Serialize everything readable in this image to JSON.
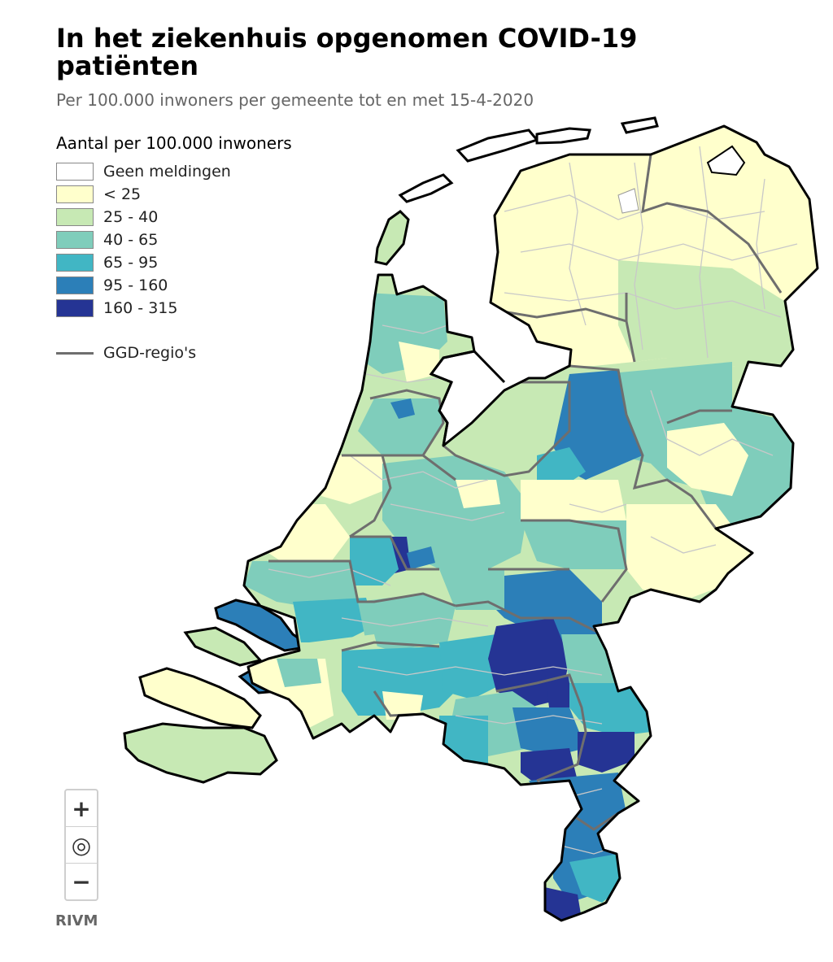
{
  "title": "In het ziekenhuis opgenomen COVID-19 patiënten",
  "subtitle": "Per 100.000 inwoners per gemeente tot en met 15-4-2020",
  "legend": {
    "title": "Aantal per 100.000 inwoners",
    "items": [
      {
        "label": "Geen meldingen",
        "color": "#ffffff"
      },
      {
        "label": "< 25",
        "color": "#ffffcc"
      },
      {
        "label": "25 - 40",
        "color": "#c7e9b4"
      },
      {
        "label": "40 - 65",
        "color": "#7fcdbb"
      },
      {
        "label": "65 - 95",
        "color": "#41b6c4"
      },
      {
        "label": "95 - 160",
        "color": "#2c7fb8"
      },
      {
        "label": "160 - 315",
        "color": "#253494"
      }
    ],
    "ggd_label": "GGD-regio's"
  },
  "zoom": {
    "in": "+",
    "locate": "◎",
    "out": "−"
  },
  "credit": "RIVM",
  "icons": {
    "zoom_in": "plus-icon",
    "locate": "target-icon",
    "zoom_out": "minus-icon"
  }
}
